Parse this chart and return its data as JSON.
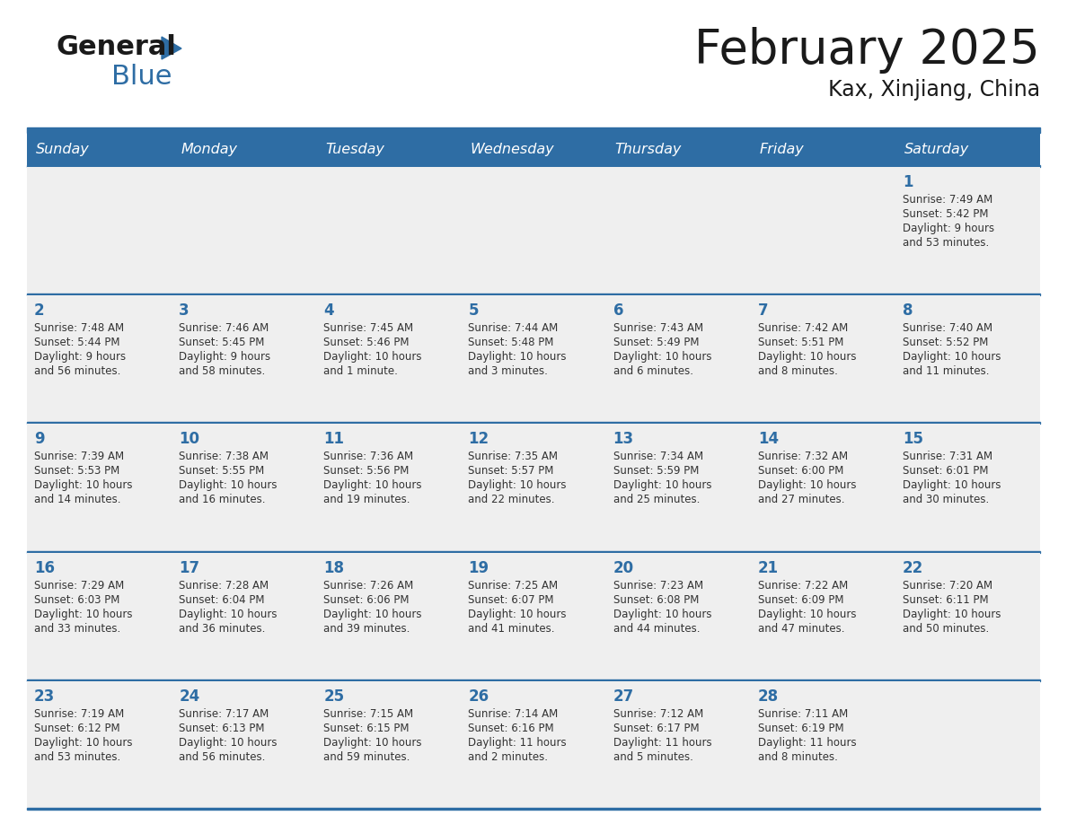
{
  "title": "February 2025",
  "subtitle": "Kax, Xinjiang, China",
  "days_of_week": [
    "Sunday",
    "Monday",
    "Tuesday",
    "Wednesday",
    "Thursday",
    "Friday",
    "Saturday"
  ],
  "header_bg": "#2E6DA4",
  "header_text": "#FFFFFF",
  "cell_bg": "#EFEFEF",
  "border_color": "#2E6DA4",
  "text_color": "#333333",
  "title_color": "#1a1a1a",
  "day_num_color": "#2E6DA4",
  "calendar_data": [
    [
      null,
      null,
      null,
      null,
      null,
      null,
      {
        "day": "1",
        "sunrise": "7:49 AM",
        "sunset": "5:42 PM",
        "daylight": "9 hours\nand 53 minutes."
      }
    ],
    [
      {
        "day": "2",
        "sunrise": "7:48 AM",
        "sunset": "5:44 PM",
        "daylight": "9 hours\nand 56 minutes."
      },
      {
        "day": "3",
        "sunrise": "7:46 AM",
        "sunset": "5:45 PM",
        "daylight": "9 hours\nand 58 minutes."
      },
      {
        "day": "4",
        "sunrise": "7:45 AM",
        "sunset": "5:46 PM",
        "daylight": "10 hours\nand 1 minute."
      },
      {
        "day": "5",
        "sunrise": "7:44 AM",
        "sunset": "5:48 PM",
        "daylight": "10 hours\nand 3 minutes."
      },
      {
        "day": "6",
        "sunrise": "7:43 AM",
        "sunset": "5:49 PM",
        "daylight": "10 hours\nand 6 minutes."
      },
      {
        "day": "7",
        "sunrise": "7:42 AM",
        "sunset": "5:51 PM",
        "daylight": "10 hours\nand 8 minutes."
      },
      {
        "day": "8",
        "sunrise": "7:40 AM",
        "sunset": "5:52 PM",
        "daylight": "10 hours\nand 11 minutes."
      }
    ],
    [
      {
        "day": "9",
        "sunrise": "7:39 AM",
        "sunset": "5:53 PM",
        "daylight": "10 hours\nand 14 minutes."
      },
      {
        "day": "10",
        "sunrise": "7:38 AM",
        "sunset": "5:55 PM",
        "daylight": "10 hours\nand 16 minutes."
      },
      {
        "day": "11",
        "sunrise": "7:36 AM",
        "sunset": "5:56 PM",
        "daylight": "10 hours\nand 19 minutes."
      },
      {
        "day": "12",
        "sunrise": "7:35 AM",
        "sunset": "5:57 PM",
        "daylight": "10 hours\nand 22 minutes."
      },
      {
        "day": "13",
        "sunrise": "7:34 AM",
        "sunset": "5:59 PM",
        "daylight": "10 hours\nand 25 minutes."
      },
      {
        "day": "14",
        "sunrise": "7:32 AM",
        "sunset": "6:00 PM",
        "daylight": "10 hours\nand 27 minutes."
      },
      {
        "day": "15",
        "sunrise": "7:31 AM",
        "sunset": "6:01 PM",
        "daylight": "10 hours\nand 30 minutes."
      }
    ],
    [
      {
        "day": "16",
        "sunrise": "7:29 AM",
        "sunset": "6:03 PM",
        "daylight": "10 hours\nand 33 minutes."
      },
      {
        "day": "17",
        "sunrise": "7:28 AM",
        "sunset": "6:04 PM",
        "daylight": "10 hours\nand 36 minutes."
      },
      {
        "day": "18",
        "sunrise": "7:26 AM",
        "sunset": "6:06 PM",
        "daylight": "10 hours\nand 39 minutes."
      },
      {
        "day": "19",
        "sunrise": "7:25 AM",
        "sunset": "6:07 PM",
        "daylight": "10 hours\nand 41 minutes."
      },
      {
        "day": "20",
        "sunrise": "7:23 AM",
        "sunset": "6:08 PM",
        "daylight": "10 hours\nand 44 minutes."
      },
      {
        "day": "21",
        "sunrise": "7:22 AM",
        "sunset": "6:09 PM",
        "daylight": "10 hours\nand 47 minutes."
      },
      {
        "day": "22",
        "sunrise": "7:20 AM",
        "sunset": "6:11 PM",
        "daylight": "10 hours\nand 50 minutes."
      }
    ],
    [
      {
        "day": "23",
        "sunrise": "7:19 AM",
        "sunset": "6:12 PM",
        "daylight": "10 hours\nand 53 minutes."
      },
      {
        "day": "24",
        "sunrise": "7:17 AM",
        "sunset": "6:13 PM",
        "daylight": "10 hours\nand 56 minutes."
      },
      {
        "day": "25",
        "sunrise": "7:15 AM",
        "sunset": "6:15 PM",
        "daylight": "10 hours\nand 59 minutes."
      },
      {
        "day": "26",
        "sunrise": "7:14 AM",
        "sunset": "6:16 PM",
        "daylight": "11 hours\nand 2 minutes."
      },
      {
        "day": "27",
        "sunrise": "7:12 AM",
        "sunset": "6:17 PM",
        "daylight": "11 hours\nand 5 minutes."
      },
      {
        "day": "28",
        "sunrise": "7:11 AM",
        "sunset": "6:19 PM",
        "daylight": "11 hours\nand 8 minutes."
      },
      null
    ]
  ]
}
